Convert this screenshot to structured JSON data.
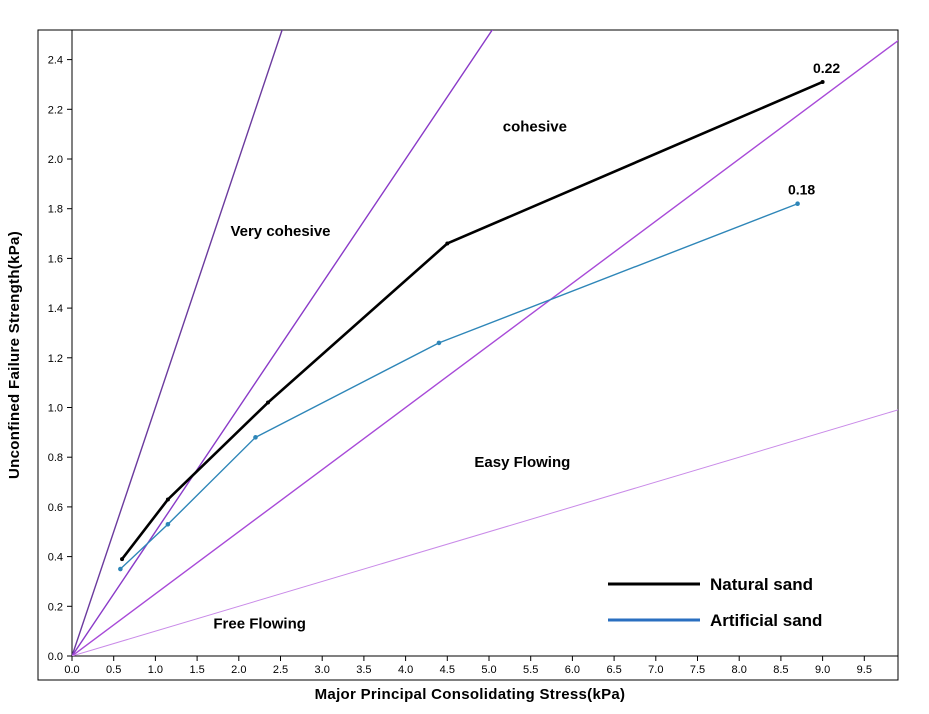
{
  "chart_data": {
    "type": "line",
    "xlabel": "Major Principal Consolidating Stress(kPa)",
    "ylabel": "Unconfined Failure Strength(kPa)",
    "xlim": [
      0,
      9.9
    ],
    "ylim": [
      0,
      2.53
    ],
    "x_ticks": [
      "0.0",
      "0.5",
      "1.0",
      "1.5",
      "2.0",
      "2.5",
      "3.0",
      "3.5",
      "4.0",
      "4.5",
      "5.0",
      "5.5",
      "6.0",
      "6.5",
      "7.0",
      "7.5",
      "8.0",
      "8.5",
      "9.0",
      "9.5"
    ],
    "y_ticks": [
      "0.0",
      "0.2",
      "0.4",
      "0.6",
      "0.8",
      "1.0",
      "1.2",
      "1.4",
      "1.6",
      "1.8",
      "2.0",
      "2.2",
      "2.4"
    ],
    "grid": false,
    "legend_position": "bottom-right",
    "series": [
      {
        "name": "Natural sand",
        "color": "#000000",
        "x": [
          0.6,
          1.15,
          2.35,
          4.5,
          9.0
        ],
        "y": [
          0.39,
          0.63,
          1.02,
          1.66,
          2.31
        ],
        "end_label": "0.22"
      },
      {
        "name": "Artificial sand",
        "color": "#2e86b8",
        "x": [
          0.58,
          1.15,
          2.2,
          4.4,
          8.7
        ],
        "y": [
          0.35,
          0.53,
          0.88,
          1.26,
          1.82
        ],
        "end_label": "0.18"
      }
    ],
    "flow_function_lines": [
      {
        "ffc": 1,
        "color": "#6b3a9e"
      },
      {
        "ffc": 2,
        "color": "#8a3ac8"
      },
      {
        "ffc": 4,
        "color": "#a84ad8"
      },
      {
        "ffc": 10,
        "color": "#c98ae8"
      }
    ],
    "regions": [
      {
        "label": "Very cohesive",
        "x": 2.5,
        "y": 1.69
      },
      {
        "label": "cohesive",
        "x": 5.55,
        "y": 2.11
      },
      {
        "label": "Easy Flowing",
        "x": 5.4,
        "y": 0.76
      },
      {
        "label": "Free Flowing",
        "x": 2.25,
        "y": 0.11
      }
    ]
  }
}
